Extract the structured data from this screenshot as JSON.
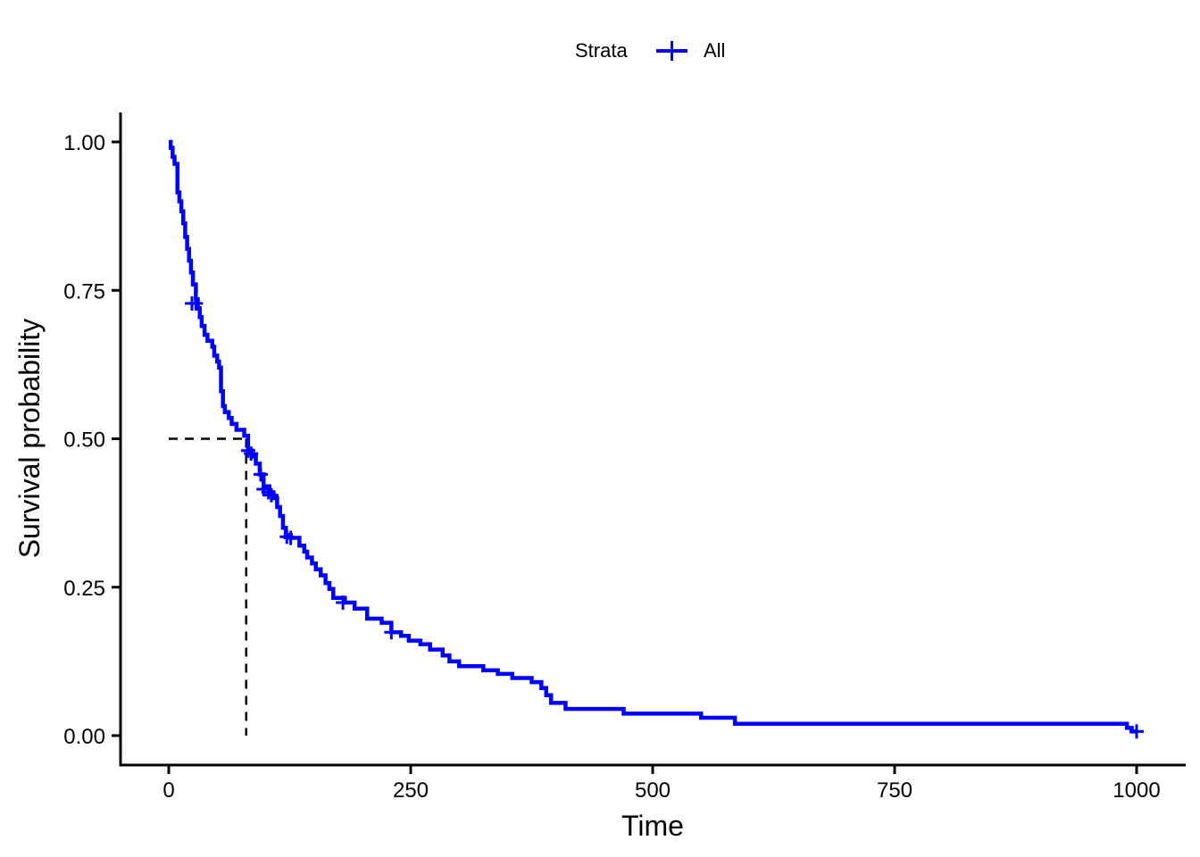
{
  "chart_data": {
    "type": "line",
    "subtype": "kaplan-meier survival curve",
    "xlabel": "Time",
    "ylabel": "Survival probability",
    "xlim": [
      -50,
      1050
    ],
    "ylim": [
      -0.05,
      1.05
    ],
    "x_ticks": [
      0,
      250,
      500,
      750,
      1000
    ],
    "x_tick_labels": [
      "0",
      "250",
      "500",
      "750",
      "1000"
    ],
    "y_ticks": [
      0,
      0.25,
      0.5,
      0.75,
      1.0
    ],
    "y_tick_labels": [
      "0.00",
      "0.25",
      "0.50",
      "0.75",
      "1.00"
    ],
    "grid": false,
    "legend": {
      "position": "top",
      "title": "Strata",
      "entries": [
        {
          "label": "All",
          "color": "#0000ff"
        }
      ]
    },
    "median_survival": {
      "time": 80,
      "probability": 0.5,
      "line_style": "dashed",
      "color": "#000000"
    },
    "series": [
      {
        "name": "All",
        "color": "#0000ff",
        "step_points": [
          [
            0,
            1.0
          ],
          [
            2,
            0.99
          ],
          [
            4,
            0.975
          ],
          [
            6,
            0.963
          ],
          [
            9,
            0.915
          ],
          [
            11,
            0.9
          ],
          [
            13,
            0.883
          ],
          [
            15,
            0.863
          ],
          [
            17,
            0.84
          ],
          [
            19,
            0.82
          ],
          [
            21,
            0.8
          ],
          [
            23,
            0.78
          ],
          [
            25,
            0.76
          ],
          [
            28,
            0.735
          ],
          [
            30,
            0.72
          ],
          [
            32,
            0.705
          ],
          [
            34,
            0.69
          ],
          [
            37,
            0.675
          ],
          [
            40,
            0.665
          ],
          [
            45,
            0.655
          ],
          [
            47,
            0.64
          ],
          [
            50,
            0.63
          ],
          [
            52,
            0.62
          ],
          [
            54,
            0.58
          ],
          [
            56,
            0.555
          ],
          [
            58,
            0.545
          ],
          [
            62,
            0.535
          ],
          [
            65,
            0.525
          ],
          [
            70,
            0.515
          ],
          [
            78,
            0.505
          ],
          [
            82,
            0.48
          ],
          [
            86,
            0.47
          ],
          [
            90,
            0.458
          ],
          [
            94,
            0.44
          ],
          [
            98,
            0.42
          ],
          [
            104,
            0.41
          ],
          [
            108,
            0.4
          ],
          [
            112,
            0.385
          ],
          [
            115,
            0.37
          ],
          [
            118,
            0.35
          ],
          [
            121,
            0.338
          ],
          [
            126,
            0.333
          ],
          [
            135,
            0.32
          ],
          [
            140,
            0.31
          ],
          [
            143,
            0.3
          ],
          [
            148,
            0.29
          ],
          [
            152,
            0.28
          ],
          [
            157,
            0.27
          ],
          [
            162,
            0.257
          ],
          [
            166,
            0.247
          ],
          [
            170,
            0.232
          ],
          [
            182,
            0.224
          ],
          [
            192,
            0.214
          ],
          [
            205,
            0.197
          ],
          [
            220,
            0.19
          ],
          [
            230,
            0.174
          ],
          [
            240,
            0.168
          ],
          [
            248,
            0.16
          ],
          [
            260,
            0.154
          ],
          [
            270,
            0.145
          ],
          [
            283,
            0.135
          ],
          [
            290,
            0.125
          ],
          [
            300,
            0.117
          ],
          [
            325,
            0.11
          ],
          [
            340,
            0.104
          ],
          [
            355,
            0.097
          ],
          [
            375,
            0.09
          ],
          [
            385,
            0.08
          ],
          [
            390,
            0.068
          ],
          [
            395,
            0.055
          ],
          [
            410,
            0.045
          ],
          [
            470,
            0.037
          ],
          [
            550,
            0.03
          ],
          [
            585,
            0.02
          ],
          [
            990,
            0.013
          ],
          [
            995,
            0.007
          ],
          [
            1000,
            0.007
          ]
        ],
        "censor_marks": [
          [
            24,
            0.728
          ],
          [
            28,
            0.728
          ],
          [
            82,
            0.48
          ],
          [
            85,
            0.475
          ],
          [
            95,
            0.44
          ],
          [
            98,
            0.415
          ],
          [
            103,
            0.41
          ],
          [
            106,
            0.405
          ],
          [
            122,
            0.335
          ],
          [
            126,
            0.333
          ],
          [
            180,
            0.224
          ],
          [
            230,
            0.174
          ],
          [
            1000,
            0.007
          ]
        ]
      }
    ]
  }
}
